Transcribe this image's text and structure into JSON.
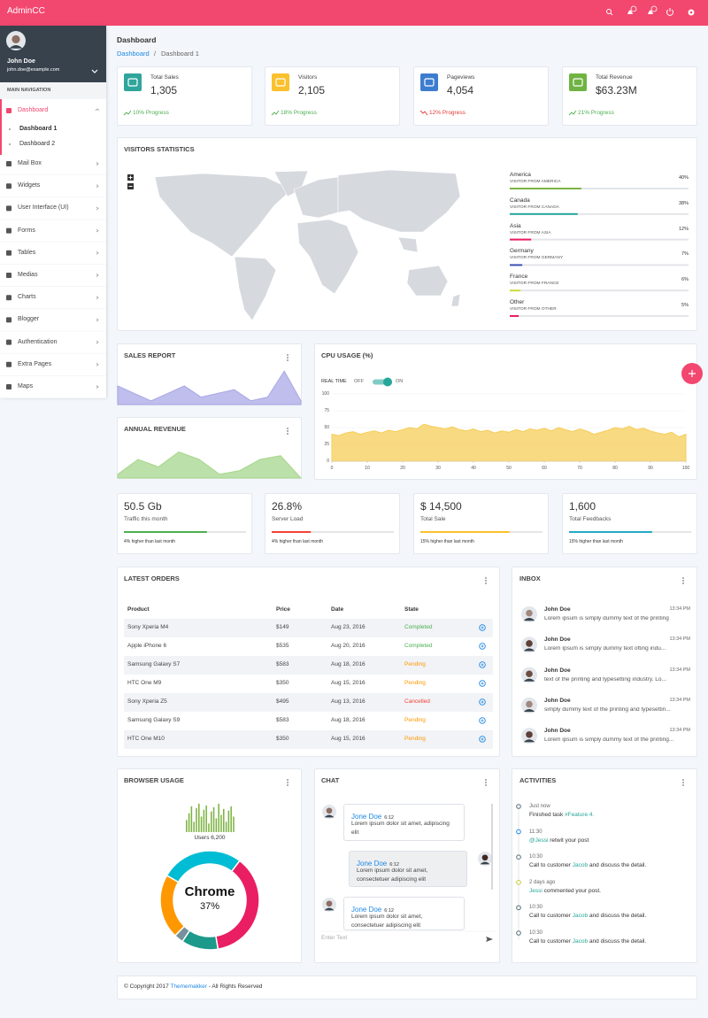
{
  "header": {
    "brand": "AdminCC"
  },
  "sidebar": {
    "user": {
      "name": "John Doe",
      "email": "john.doe@example.com"
    },
    "nav_title": "MAIN NAVIGATION",
    "menu": [
      {
        "label": "Dashboard",
        "active": true,
        "submenu": [
          "Dashboard 1",
          "Dashboard 2"
        ],
        "active_submenu": 0
      },
      {
        "label": "Mail Box"
      },
      {
        "label": "Widgets"
      },
      {
        "label": "User Interface (UI)"
      },
      {
        "label": "Forms"
      },
      {
        "label": "Tables"
      },
      {
        "label": "Medias"
      },
      {
        "label": "Charts"
      },
      {
        "label": "Blogger"
      },
      {
        "label": "Authentication"
      },
      {
        "label": "Extra Pages"
      },
      {
        "label": "Maps"
      }
    ]
  },
  "page": {
    "title": "Dashboard",
    "breadcrumb": [
      "Dashboard",
      "/",
      "Dashboard 1"
    ]
  },
  "stat_cards": [
    {
      "title": "Total Sales",
      "value": "1,305",
      "progress": "10% Progress",
      "trend": "up",
      "color": "#2fa59b"
    },
    {
      "title": "Visitors",
      "value": "2,105",
      "progress": "18% Progress",
      "trend": "up",
      "color": "#fbc02d"
    },
    {
      "title": "Pageviews",
      "value": "4,054",
      "progress": "12% Progress",
      "trend": "down",
      "color": "#3d7dd0"
    },
    {
      "title": "Total Revenue",
      "value": "$63.23M",
      "progress": "21% Progress",
      "trend": "up",
      "color": "#6fb342"
    }
  ],
  "visitors_statistics": {
    "title": "VISITORS STATISTICS",
    "items": [
      {
        "name": "America",
        "subtitle": "VISITOR FROM AMERICA",
        "value": 40,
        "value_label": "40%",
        "color": "#7cb342"
      },
      {
        "name": "Canada",
        "subtitle": "VISITOR FROM CANADA",
        "value": 38,
        "value_label": "38%",
        "color": "#26a69a"
      },
      {
        "name": "Asia",
        "subtitle": "VISITOR FROM ASIA",
        "value": 12,
        "value_label": "12%",
        "color": "#e91e63"
      },
      {
        "name": "Germany",
        "subtitle": "VISITOR FROM GERMANY",
        "value": 7,
        "value_label": "7%",
        "color": "#3f51b5"
      },
      {
        "name": "France",
        "subtitle": "VISITOR FROM FRANCE",
        "value": 6,
        "value_label": "6%",
        "color": "#cddc39"
      },
      {
        "name": "Other",
        "subtitle": "VISITOR FROM OTHER",
        "value": 5,
        "value_label": "5%",
        "color": "#e91e63"
      }
    ]
  },
  "sales_report": {
    "title": "SALES REPORT",
    "chart_data": {
      "type": "area",
      "values": [
        5,
        3,
        1,
        3,
        5,
        2,
        3,
        4,
        1,
        2,
        9,
        1
      ],
      "ylim": [
        0,
        10
      ],
      "color": "#a9a8e6"
    }
  },
  "annual_revenue": {
    "title": "ANNUAL REVENUE",
    "chart_data": {
      "type": "area",
      "values": [
        1,
        5,
        3,
        7,
        5,
        1,
        2,
        5,
        6,
        0
      ],
      "ylim": [
        0,
        10
      ],
      "color": "#a6d68c"
    }
  },
  "cpu_usage": {
    "title": "CPU USAGE (%)",
    "toggle_label": "REAL TIME",
    "toggle_off": "OFF",
    "toggle_on": "ON",
    "chart_data": {
      "type": "area",
      "x": [
        0,
        2,
        4,
        6,
        8,
        10,
        12,
        14,
        16,
        18,
        20,
        22,
        24,
        26,
        28,
        30,
        32,
        34,
        36,
        38,
        40,
        42,
        44,
        46,
        48,
        50,
        52,
        54,
        56,
        58,
        60,
        62,
        64,
        66,
        68,
        70,
        72,
        74,
        76,
        78,
        80,
        82,
        84,
        86,
        88,
        90,
        92,
        94,
        96,
        98,
        100
      ],
      "values": [
        40,
        38,
        42,
        44,
        40,
        43,
        45,
        42,
        46,
        44,
        47,
        50,
        48,
        55,
        52,
        50,
        48,
        51,
        47,
        45,
        48,
        44,
        46,
        42,
        45,
        43,
        47,
        44,
        48,
        46,
        49,
        45,
        50,
        47,
        44,
        48,
        45,
        40,
        43,
        46,
        50,
        48,
        52,
        47,
        49,
        45,
        42,
        40,
        43,
        36,
        40
      ],
      "xlim": [
        0,
        100
      ],
      "ylim": [
        0,
        100
      ],
      "xticks": [
        0,
        10,
        20,
        30,
        40,
        50,
        60,
        70,
        80,
        90,
        100
      ],
      "yticks": [
        0,
        25,
        50,
        75,
        100
      ],
      "color": "#f6cd58"
    }
  },
  "summary_cards": [
    {
      "value": "50.5 Gb",
      "label": "Traffic this month",
      "note": "4% higher than last month",
      "progress": 68,
      "color": "#4caf50"
    },
    {
      "value": "26.8%",
      "label": "Server Load",
      "note": "4% higher than last month",
      "progress": 32,
      "color": "#f44336"
    },
    {
      "value": "$ 14,500",
      "label": "Total Sale",
      "note": "15% higher than last month",
      "progress": 73,
      "color": "#fbc02d"
    },
    {
      "value": "1,600",
      "label": "Total Feedbacks",
      "note": "15% higher than last month",
      "progress": 68,
      "color": "#26a9c8"
    }
  ],
  "latest_orders": {
    "title": "LATEST ORDERS",
    "columns": [
      "Product",
      "Price",
      "Date",
      "State"
    ],
    "rows": [
      [
        "Sony Xperia M4",
        "$149",
        "Aug 23, 2016",
        "Completed"
      ],
      [
        "Apple iPhone 6",
        "$535",
        "Aug 20, 2016",
        "Completed"
      ],
      [
        "Samsung Galaxy S7",
        "$583",
        "Aug 18, 2016",
        "Pending"
      ],
      [
        "HTC One M9",
        "$350",
        "Aug 15, 2016",
        "Pending"
      ],
      [
        "Sony Xperia Z5",
        "$495",
        "Aug 13, 2016",
        "Cancelled"
      ],
      [
        "Samsung Galaxy S9",
        "$583",
        "Aug 18, 2016",
        "Pending"
      ],
      [
        "HTC One M10",
        "$350",
        "Aug 15, 2016",
        "Pending"
      ]
    ],
    "state_colors": {
      "Completed": "#4caf50",
      "Pending": "#ff9800",
      "Cancelled": "#f44336"
    }
  },
  "inbox": {
    "title": "INBOX",
    "messages": [
      {
        "name": "John Doe",
        "time": "13:34 PM",
        "text": "Lorem ipsum is simply dummy text of the printing"
      },
      {
        "name": "John Doe",
        "time": "13:34 PM",
        "text": "Lorem Ipsum is simply dummy text ofting indu..."
      },
      {
        "name": "John Doe",
        "time": "13:34 PM",
        "text": "text of the printing and typesetting industry. Lo..."
      },
      {
        "name": "John Doe",
        "time": "13:34 PM",
        "text": "simply dummy text of the printing and typesettin..."
      },
      {
        "name": "John Doe",
        "time": "13:34 PM",
        "text": "Lorem ipsum is simply dummy text of the printing..."
      }
    ]
  },
  "browser_usage": {
    "title": "BROWSER USAGE",
    "bars": {
      "chart_data": {
        "type": "bar",
        "values": [
          14,
          22,
          30,
          12,
          28,
          33,
          18,
          26,
          31,
          10,
          24,
          29,
          16,
          33,
          20,
          27,
          12,
          25,
          30,
          18
        ],
        "ylim": [
          0,
          35
        ],
        "color": "#7cb342"
      }
    },
    "users_label": "Users 6,200",
    "donut": {
      "chart_data": {
        "type": "donut",
        "values": [
          27,
          37,
          12,
          3,
          21
        ],
        "colors": [
          "#00bcd4",
          "#e91e63",
          "#1b998b",
          "#78909c",
          "#ff9800"
        ],
        "start_angle": -60
      },
      "center_title": "Chrome",
      "center_value": "37%"
    }
  },
  "chat": {
    "title": "CHAT",
    "messages": [
      {
        "name": "Jone Doe",
        "time": "6:12",
        "text": "Lorem ipsum dolor sit amet, adipiscing elit",
        "side": "left"
      },
      {
        "name": "Jone Doe",
        "time": "6:12",
        "text": "Lorem ipsum dolor sit amet, consectetuer adipiscing elit",
        "side": "right"
      },
      {
        "name": "Jone Doe",
        "time": "6:12",
        "text": "Lorem ipsum dolor sit amet, consectetuer adipiscing elit",
        "side": "left"
      }
    ],
    "input_placeholder": "Enter Text"
  },
  "activities": {
    "title": "ACTIVITIES",
    "items": [
      {
        "time": "Just now",
        "color": "#546e7a",
        "parts": [
          {
            "text": "Finished task "
          },
          {
            "text": "#Feature 4.",
            "link": true
          }
        ]
      },
      {
        "time": "11:30",
        "color": "#1e88e5",
        "parts": [
          {
            "text": "@Jessi",
            "link": true
          },
          {
            "text": " retwit your post"
          }
        ]
      },
      {
        "time": "10:30",
        "color": "#546e7a",
        "parts": [
          {
            "text": "Call to customer "
          },
          {
            "text": "Jacob",
            "link": true
          },
          {
            "text": " and discuss the detail."
          }
        ]
      },
      {
        "time": "2 days ago",
        "color": "#c0ca33",
        "parts": [
          {
            "text": "Jessi",
            "link": true
          },
          {
            "text": " commented your post."
          }
        ]
      },
      {
        "time": "10:30",
        "color": "#546e7a",
        "parts": [
          {
            "text": "Call to customer "
          },
          {
            "text": "Jacob",
            "link": true
          },
          {
            "text": " and discuss the detail."
          }
        ]
      },
      {
        "time": "10:30",
        "color": "#546e7a",
        "parts": [
          {
            "text": "Call to customer "
          },
          {
            "text": "Jacob",
            "link": true
          },
          {
            "text": " and discuss the detail."
          }
        ]
      }
    ]
  },
  "footer": {
    "parts": [
      {
        "text": "© Copyright 2017 "
      },
      {
        "text": "Thememakker",
        "link": true
      },
      {
        "text": " - All Rights Reserved"
      }
    ]
  }
}
